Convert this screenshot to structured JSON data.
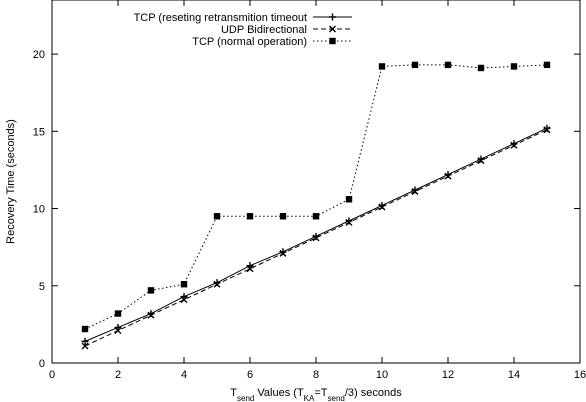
{
  "chart_data": {
    "type": "line",
    "title": "",
    "xlabel": {
      "parts": [
        {
          "text": "T",
          "sub": false
        },
        {
          "text": "send",
          "sub": true
        },
        {
          "text": " Values (T",
          "sub": false
        },
        {
          "text": "KA",
          "sub": true
        },
        {
          "text": "=T",
          "sub": false
        },
        {
          "text": "send",
          "sub": true
        },
        {
          "text": "/3) seconds",
          "sub": false
        }
      ]
    },
    "ylabel": "Recovery Time (seconds)",
    "xlim": [
      0,
      16
    ],
    "ylim": [
      0,
      23.5
    ],
    "xticks": [
      0,
      2,
      4,
      6,
      8,
      10,
      12,
      14,
      16
    ],
    "yticks": [
      0,
      5,
      10,
      15,
      20
    ],
    "grid": false,
    "legend_position": "top-right",
    "series": [
      {
        "name": "TCP (reseting retransmition timeout",
        "marker": "plus",
        "line": "solid",
        "color": "#000000",
        "x": [
          1,
          2,
          3,
          4,
          5,
          6,
          7,
          8,
          9,
          10,
          11,
          12,
          13,
          14,
          15
        ],
        "y": [
          1.4,
          2.3,
          3.2,
          4.3,
          5.2,
          6.3,
          7.2,
          8.2,
          9.2,
          10.2,
          11.2,
          12.2,
          13.2,
          14.2,
          15.2
        ]
      },
      {
        "name": "UDP Bidirectional",
        "marker": "cross",
        "line": "dashed",
        "color": "#000000",
        "x": [
          1,
          2,
          3,
          4,
          5,
          6,
          7,
          8,
          9,
          10,
          11,
          12,
          13,
          14,
          15
        ],
        "y": [
          1.1,
          2.1,
          3.1,
          4.1,
          5.1,
          6.1,
          7.1,
          8.1,
          9.1,
          10.1,
          11.1,
          12.1,
          13.1,
          14.1,
          15.1
        ]
      },
      {
        "name": "TCP  (normal operation)",
        "marker": "square",
        "line": "dotted",
        "color": "#000000",
        "x": [
          1,
          2,
          3,
          4,
          5,
          6,
          7,
          8,
          9,
          10,
          11,
          12,
          13,
          14,
          15
        ],
        "y": [
          2.2,
          3.2,
          4.7,
          5.1,
          9.5,
          9.5,
          9.5,
          9.5,
          10.6,
          19.2,
          19.3,
          19.3,
          19.1,
          19.2,
          19.3
        ]
      }
    ]
  }
}
